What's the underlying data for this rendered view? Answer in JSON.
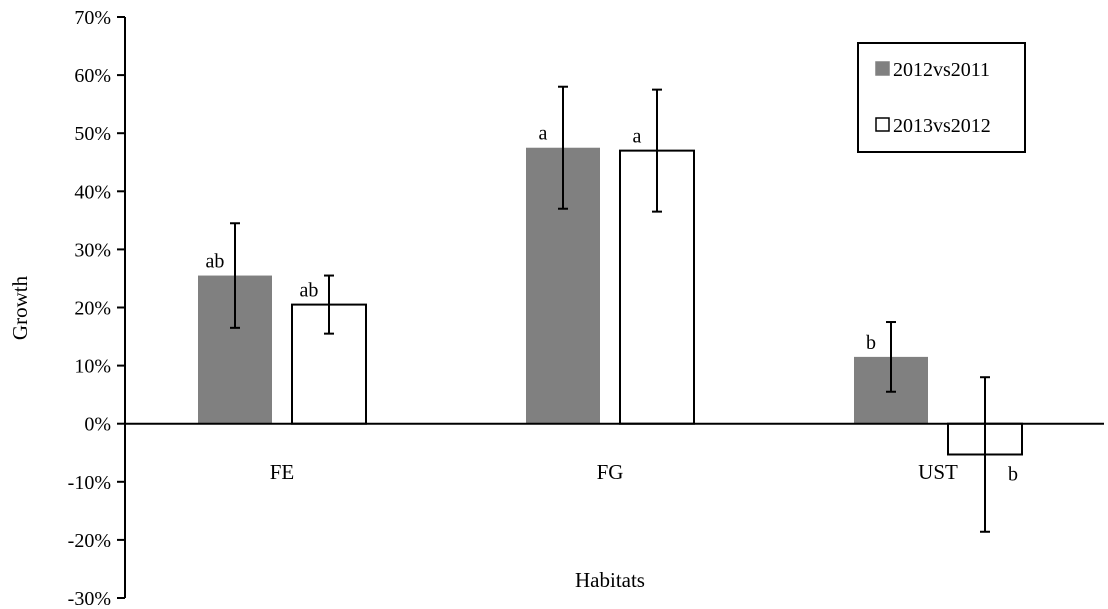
{
  "chart_data": {
    "type": "bar",
    "xlabel": "Habitats",
    "ylabel": "Growth",
    "ylim": [
      -30,
      70
    ],
    "y_ticks": [
      "70%",
      "60%",
      "50%",
      "40%",
      "30%",
      "20%",
      "10%",
      "0%",
      "-10%",
      "-20%",
      "-30%"
    ],
    "y_tick_values": [
      70,
      60,
      50,
      40,
      30,
      20,
      10,
      0,
      -10,
      -20,
      -30
    ],
    "categories": [
      "FE",
      "FG",
      "UST"
    ],
    "legend_position": "top-right",
    "grid": false,
    "series": [
      {
        "name": "2012vs2011",
        "color": "#808080",
        "fill_style": "solid",
        "values": [
          25.5,
          47.5,
          11.5
        ],
        "error": [
          9,
          10.5,
          6
        ],
        "significance_labels": [
          "ab",
          "a",
          "b"
        ]
      },
      {
        "name": "2013vs2012",
        "color": "#ffffff",
        "fill_style": "outline",
        "values": [
          20.5,
          47,
          -5.3
        ],
        "error": [
          5,
          10.5,
          13.3
        ],
        "significance_labels": [
          "ab",
          "a",
          "b"
        ]
      }
    ]
  }
}
